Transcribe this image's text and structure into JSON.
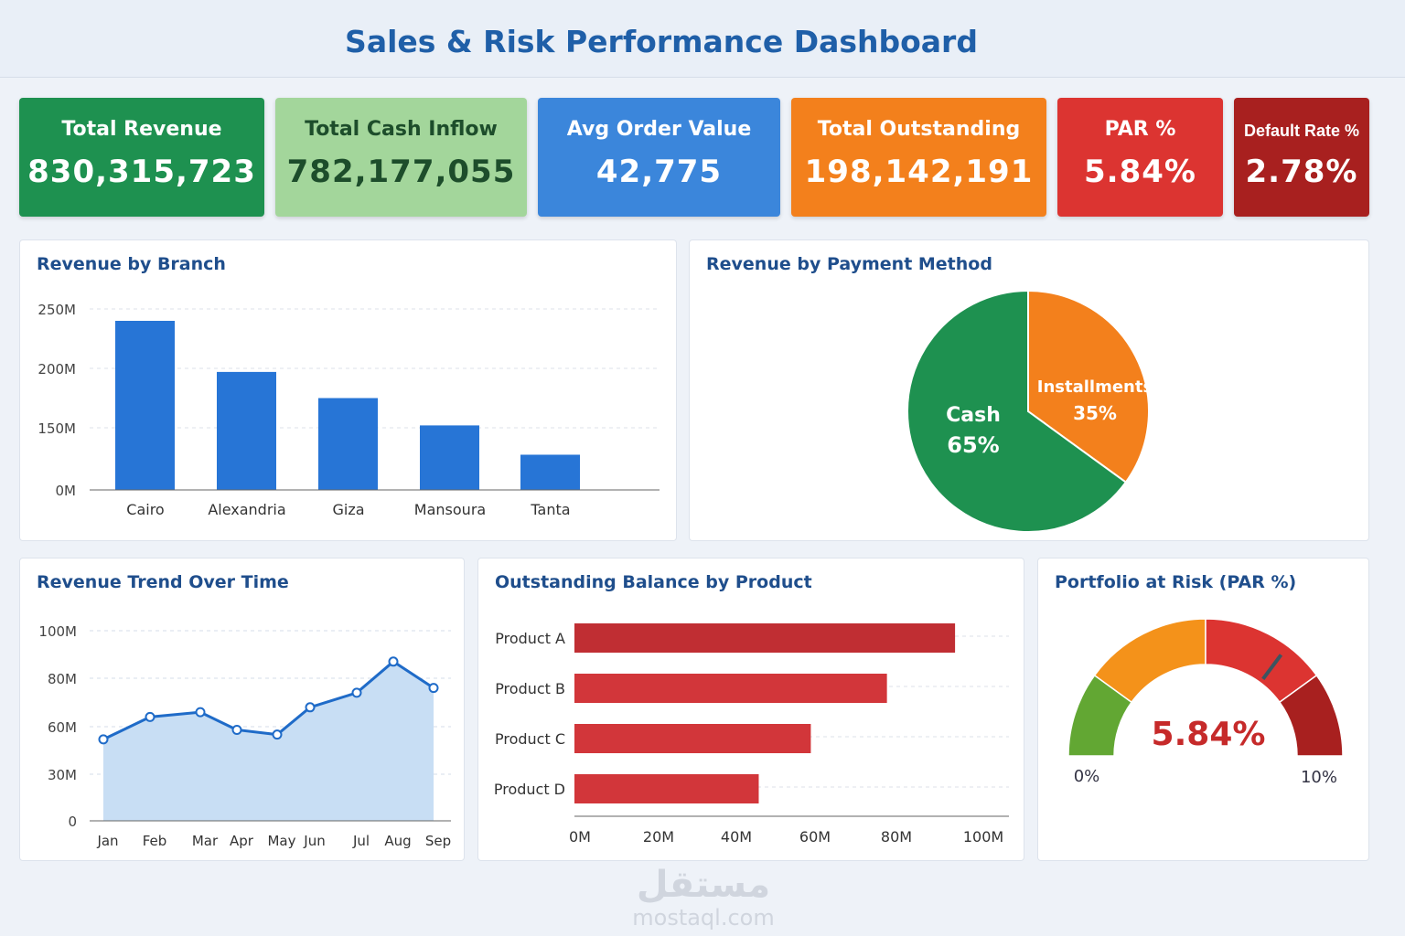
{
  "title": "Sales & Risk Performance Dashboard",
  "kpis": [
    {
      "label": "Total Revenue",
      "value": "830,315,723",
      "color": "#1e9150"
    },
    {
      "label": "Total Cash Inflow",
      "value": "782,177,055",
      "color": "#a3d69b"
    },
    {
      "label": "Avg Order Value",
      "value": "42,775",
      "color": "#3b86db"
    },
    {
      "label": "Total Outstanding",
      "value": "198,142,191",
      "color": "#f3801c"
    },
    {
      "label": "PAR %",
      "value": "5.84%",
      "color": "#dc3431"
    },
    {
      "label": "Default Rate %",
      "value": "2.78%",
      "color": "#a8201f"
    }
  ],
  "watermark": {
    "logo": "مستقل",
    "text": "mostaql.com"
  },
  "chart_data": [
    {
      "type": "bar",
      "title": "Revenue by Branch",
      "categories": [
        "Cairo",
        "Alexandria",
        "Giza",
        "Mansoura",
        "Tanta"
      ],
      "values": [
        240,
        197,
        175,
        152,
        85
      ],
      "unit": "M",
      "yticks": [
        "0M",
        "150M",
        "200M",
        "250M"
      ],
      "ytick_values": [
        0,
        150,
        200,
        250
      ],
      "grid": true,
      "color": "#2775d6"
    },
    {
      "type": "pie",
      "title": "Revenue by Payment Method",
      "slices": [
        {
          "label": "Installments",
          "value": 35,
          "text": "35%",
          "color": "#f3801c"
        },
        {
          "label": "Cash",
          "value": 65,
          "text": "65%",
          "color": "#1e9150"
        }
      ]
    },
    {
      "type": "area",
      "title": "Revenue Trend Over Time",
      "categories": [
        "Jan",
        "Feb",
        "Mar",
        "Apr",
        "May",
        "Jun",
        "Jul",
        "Aug",
        "Sep"
      ],
      "values": [
        52,
        64,
        66,
        58,
        55,
        68,
        74,
        87,
        76
      ],
      "unit": "M",
      "yticks": [
        "0",
        "30M",
        "60M",
        "80M",
        "100M"
      ],
      "ytick_values": [
        0,
        30,
        60,
        80,
        100
      ],
      "grid": true,
      "color": "#1f6bc8"
    },
    {
      "type": "bar",
      "orientation": "horizontal",
      "title": "Outstanding Balance by Product",
      "categories": [
        "Product A",
        "Product B",
        "Product C",
        "Product D"
      ],
      "values": [
        95,
        78,
        59,
        46
      ],
      "unit": "M",
      "xticks": [
        "0M",
        "20M",
        "40M",
        "60M",
        "80M",
        "100M"
      ],
      "xlim": [
        0,
        100
      ],
      "grid": true,
      "color": "#d2363a"
    },
    {
      "type": "gauge",
      "title": "Portfolio at Risk (PAR %)",
      "value": 5.84,
      "value_text": "5.84%",
      "min_label": "0%",
      "max_label": "10%",
      "range": [
        0,
        10
      ],
      "bands": [
        {
          "to": 2,
          "color": "#62a733"
        },
        {
          "to": 5,
          "color": "#f4921a"
        },
        {
          "to": 8,
          "color": "#dc3431"
        },
        {
          "to": 10,
          "color": "#a8201f"
        }
      ]
    }
  ]
}
